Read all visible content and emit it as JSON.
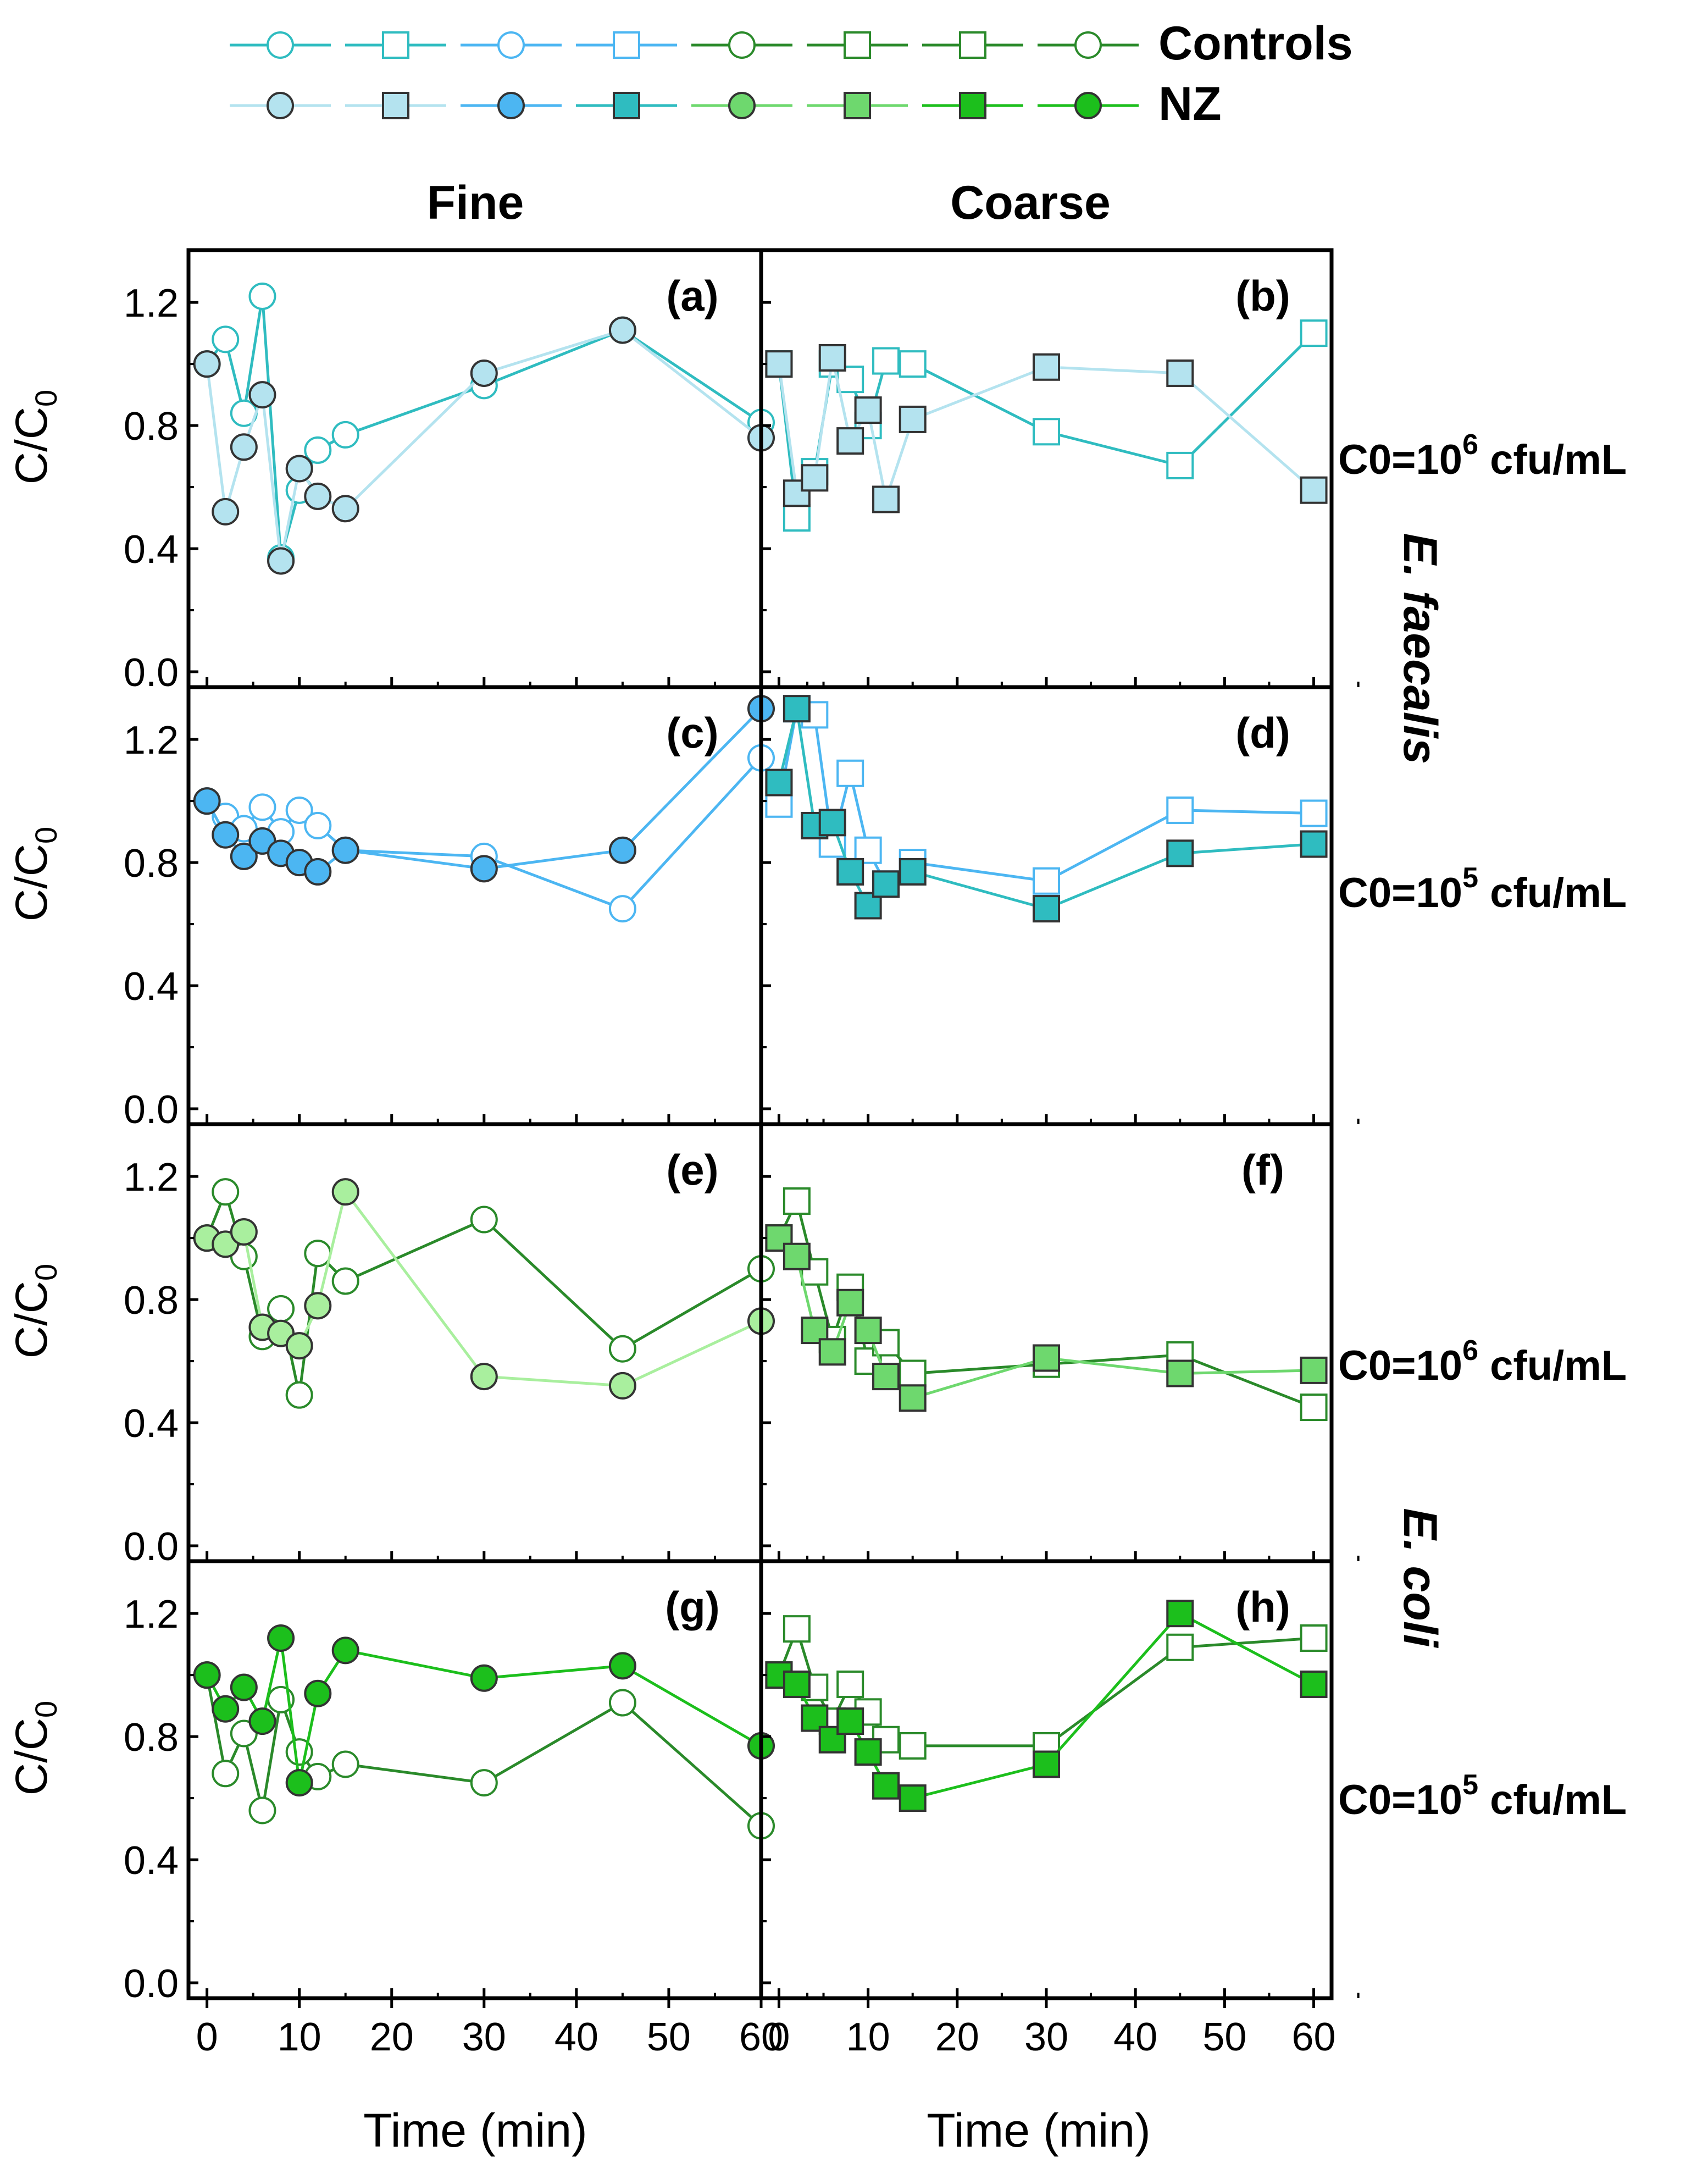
{
  "figure": {
    "legend": {
      "controls_label": "Controls",
      "nz_label": "NZ"
    },
    "column_titles": [
      "Fine",
      "Coarse"
    ],
    "row_labels": [
      {
        "text": "C0=10",
        "sup": "6",
        "rest": " cfu/mL"
      },
      {
        "text": "C0=10",
        "sup": "5",
        "rest": " cfu/mL"
      },
      {
        "text": "C0=10",
        "sup": "6",
        "rest": " cfu/mL"
      },
      {
        "text": "C0=10",
        "sup": "5",
        "rest": " cfu/mL"
      }
    ],
    "species_labels": [
      {
        "text": "E. faecalis",
        "color": "#27b6b2"
      },
      {
        "text": "E. coli",
        "color": "#22b322"
      }
    ],
    "ylabel": {
      "main": "C/C",
      "sub": "0"
    },
    "xlabel": "Time (min)",
    "xticks": [
      "0",
      "10",
      "20",
      "30",
      "40",
      "50",
      "60"
    ],
    "yticks": [
      "0.0",
      "0.4",
      "0.8",
      "1.2"
    ],
    "colors": {
      "cyan_dark": "#2fbcc0",
      "cyan_light": "#b4e3ef",
      "blue": "#4cb6f2",
      "green_mid": "#6ed86e",
      "green_dark": "#2a8a2a",
      "green_bright": "#1cbf1c",
      "green_light": "#a9ef9e"
    }
  },
  "chart_data": [
    {
      "panel": "(a)",
      "type": "line",
      "xlim": [
        -2,
        60
      ],
      "ylim": [
        -0.05,
        1.37
      ],
      "xlabel": "Time (min)",
      "ylabel": "C/C0",
      "series": [
        {
          "name": "Controls",
          "marker": "circle",
          "filled": false,
          "color": "#2fbcc0",
          "x": [
            0,
            2,
            4,
            6,
            8,
            10,
            12,
            15,
            30,
            45,
            60
          ],
          "y": [
            1.0,
            1.08,
            0.84,
            1.22,
            0.37,
            0.59,
            0.72,
            0.77,
            0.93,
            1.11,
            0.81
          ]
        },
        {
          "name": "NZ",
          "marker": "circle",
          "filled": true,
          "color": "#b4e3ef",
          "x": [
            0,
            2,
            4,
            6,
            8,
            10,
            12,
            15,
            30,
            45,
            60
          ],
          "y": [
            1.0,
            0.52,
            0.73,
            0.9,
            0.36,
            0.66,
            0.57,
            0.53,
            0.97,
            1.11,
            0.76
          ]
        }
      ]
    },
    {
      "panel": "(b)",
      "type": "line",
      "xlim": [
        -2,
        62
      ],
      "ylim": [
        -0.05,
        1.37
      ],
      "xlabel": "Time (min)",
      "ylabel": "C/C0",
      "series": [
        {
          "name": "Controls",
          "marker": "square",
          "filled": false,
          "color": "#2fbcc0",
          "x": [
            0,
            2,
            4,
            6,
            8,
            10,
            12,
            15,
            30,
            45,
            60
          ],
          "y": [
            1.0,
            0.5,
            0.65,
            1.0,
            0.95,
            0.8,
            1.01,
            1.0,
            0.78,
            0.67,
            1.1
          ]
        },
        {
          "name": "NZ",
          "marker": "square",
          "filled": true,
          "color": "#b4e3ef",
          "x": [
            0,
            2,
            4,
            6,
            8,
            10,
            12,
            15,
            30,
            45,
            60
          ],
          "y": [
            1.0,
            0.58,
            0.63,
            1.02,
            0.75,
            0.85,
            0.56,
            0.82,
            0.99,
            0.97,
            0.59
          ]
        }
      ]
    },
    {
      "panel": "(c)",
      "type": "line",
      "xlim": [
        -2,
        60
      ],
      "ylim": [
        -0.05,
        1.37
      ],
      "xlabel": "Time (min)",
      "ylabel": "C/C0",
      "series": [
        {
          "name": "Controls",
          "marker": "circle",
          "filled": false,
          "color": "#4cb6f2",
          "x": [
            0,
            2,
            4,
            6,
            8,
            10,
            12,
            15,
            30,
            45,
            60
          ],
          "y": [
            1.0,
            0.95,
            0.91,
            0.98,
            0.9,
            0.97,
            0.92,
            0.84,
            0.82,
            0.65,
            1.14
          ]
        },
        {
          "name": "NZ",
          "marker": "circle",
          "filled": true,
          "color": "#4cb6f2",
          "x": [
            0,
            2,
            4,
            6,
            8,
            10,
            12,
            15,
            30,
            45,
            60
          ],
          "y": [
            1.0,
            0.89,
            0.82,
            0.87,
            0.83,
            0.8,
            0.77,
            0.84,
            0.78,
            0.84,
            1.3
          ]
        }
      ]
    },
    {
      "panel": "(d)",
      "type": "line",
      "xlim": [
        -2,
        62
      ],
      "ylim": [
        -0.05,
        1.37
      ],
      "xlabel": "Time (min)",
      "ylabel": "C/C0",
      "series": [
        {
          "name": "Controls",
          "marker": "square",
          "filled": false,
          "color": "#4cb6f2",
          "x": [
            0,
            2,
            4,
            6,
            8,
            10,
            12,
            15,
            30,
            45,
            60
          ],
          "y": [
            0.99,
            1.3,
            1.28,
            0.86,
            1.09,
            0.84,
            0.73,
            0.8,
            0.74,
            0.97,
            0.96
          ]
        },
        {
          "name": "NZ",
          "marker": "square",
          "filled": true,
          "color": "#2fbcc0",
          "x": [
            0,
            2,
            4,
            6,
            8,
            10,
            12,
            15,
            30,
            45,
            60
          ],
          "y": [
            1.06,
            1.3,
            0.92,
            0.93,
            0.77,
            0.66,
            0.73,
            0.77,
            0.65,
            0.83,
            0.86
          ]
        }
      ]
    },
    {
      "panel": "(e)",
      "type": "line",
      "xlim": [
        -2,
        60
      ],
      "ylim": [
        -0.05,
        1.37
      ],
      "xlabel": "Time (min)",
      "ylabel": "C/C0",
      "series": [
        {
          "name": "Controls",
          "marker": "circle",
          "filled": false,
          "color": "#2a8a2a",
          "x": [
            0,
            2,
            4,
            6,
            8,
            10,
            12,
            15,
            30,
            45,
            60
          ],
          "y": [
            1.0,
            1.15,
            0.94,
            0.68,
            0.77,
            0.49,
            0.95,
            0.86,
            1.06,
            0.64,
            0.9
          ]
        },
        {
          "name": "NZ",
          "marker": "circle",
          "filled": true,
          "color": "#a9ef9e",
          "x": [
            0,
            2,
            4,
            6,
            8,
            10,
            12,
            15,
            30,
            45,
            60
          ],
          "y": [
            1.0,
            0.98,
            1.02,
            0.71,
            0.69,
            0.65,
            0.78,
            1.15,
            0.55,
            0.52,
            0.73
          ]
        }
      ]
    },
    {
      "panel": "(f)",
      "type": "line",
      "xlim": [
        -2,
        62
      ],
      "ylim": [
        -0.05,
        1.37
      ],
      "xlabel": "Time (min)",
      "ylabel": "C/C0",
      "series": [
        {
          "name": "Controls",
          "marker": "square",
          "filled": false,
          "color": "#2a8a2a",
          "x": [
            0,
            2,
            4,
            6,
            8,
            10,
            12,
            15,
            30,
            45,
            60
          ],
          "y": [
            1.0,
            1.12,
            0.89,
            0.67,
            0.84,
            0.6,
            0.66,
            0.56,
            0.59,
            0.62,
            0.45
          ]
        },
        {
          "name": "NZ",
          "marker": "square",
          "filled": true,
          "color": "#6ed86e",
          "x": [
            0,
            2,
            4,
            6,
            8,
            10,
            12,
            15,
            30,
            45,
            60
          ],
          "y": [
            1.0,
            0.94,
            0.7,
            0.63,
            0.79,
            0.7,
            0.55,
            0.48,
            0.61,
            0.56,
            0.57
          ]
        }
      ]
    },
    {
      "panel": "(g)",
      "type": "line",
      "xlim": [
        -2,
        60
      ],
      "ylim": [
        -0.05,
        1.37
      ],
      "xlabel": "Time (min)",
      "ylabel": "C/C0",
      "series": [
        {
          "name": "Controls",
          "marker": "circle",
          "filled": false,
          "color": "#2a8a2a",
          "x": [
            0,
            2,
            4,
            6,
            8,
            10,
            12,
            15,
            30,
            45,
            60
          ],
          "y": [
            1.0,
            0.68,
            0.81,
            0.56,
            0.92,
            0.75,
            0.67,
            0.71,
            0.65,
            0.91,
            0.51
          ]
        },
        {
          "name": "NZ",
          "marker": "circle",
          "filled": true,
          "color": "#1cbf1c",
          "x": [
            0,
            2,
            4,
            6,
            8,
            10,
            12,
            15,
            30,
            45,
            60
          ],
          "y": [
            1.0,
            0.89,
            0.96,
            0.85,
            1.12,
            0.65,
            0.94,
            1.08,
            0.99,
            1.03,
            0.77
          ]
        }
      ]
    },
    {
      "panel": "(h)",
      "type": "line",
      "xlim": [
        -2,
        62
      ],
      "ylim": [
        -0.05,
        1.37
      ],
      "xlabel": "Time (min)",
      "ylabel": "C/C0",
      "series": [
        {
          "name": "Controls",
          "marker": "square",
          "filled": false,
          "color": "#2a8a2a",
          "x": [
            0,
            2,
            4,
            6,
            8,
            10,
            12,
            15,
            30,
            45,
            60
          ],
          "y": [
            1.0,
            1.15,
            0.96,
            0.85,
            0.97,
            0.88,
            0.79,
            0.77,
            0.77,
            1.09,
            1.12
          ]
        },
        {
          "name": "NZ",
          "marker": "square",
          "filled": true,
          "color": "#1cbf1c",
          "x": [
            0,
            2,
            4,
            6,
            8,
            10,
            12,
            15,
            30,
            45,
            60
          ],
          "y": [
            1.0,
            0.97,
            0.86,
            0.79,
            0.85,
            0.75,
            0.64,
            0.6,
            0.71,
            1.2,
            0.97
          ]
        }
      ]
    }
  ]
}
